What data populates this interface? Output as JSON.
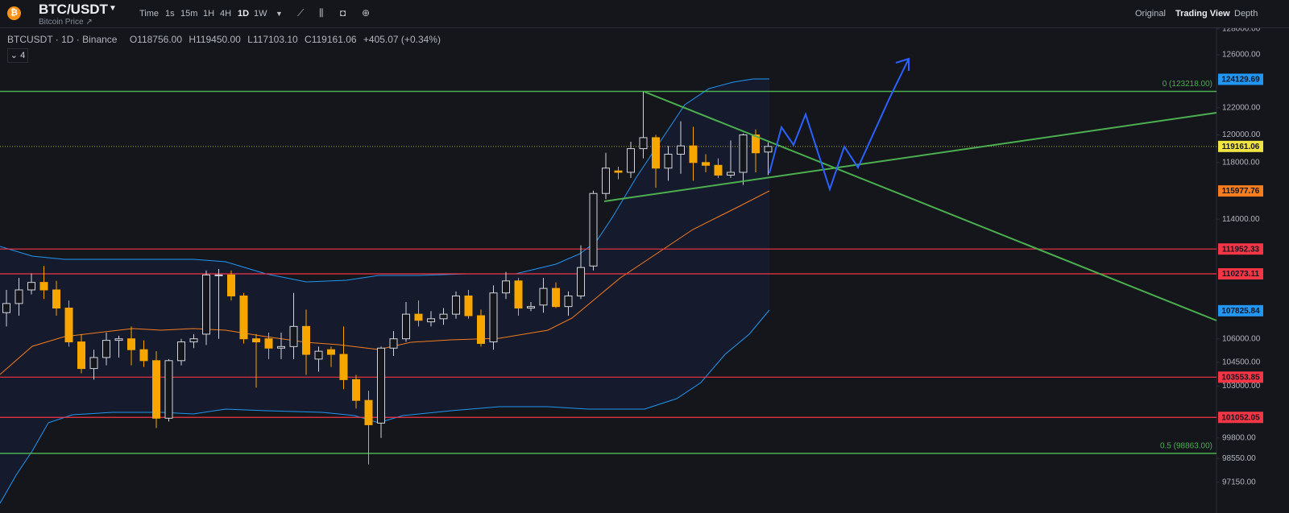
{
  "header": {
    "symbol": "BTC/USDT",
    "subtitle": "Bitcoin Price ↗",
    "timeframes": [
      "Time",
      "1s",
      "15m",
      "1H",
      "4H",
      "1D",
      "1W"
    ],
    "active_timeframe": 5,
    "views": [
      "Original",
      "Trading View",
      "Depth"
    ],
    "active_view": 1
  },
  "legend": {
    "instrument": "BTCUSDT · 1D · Binance",
    "open": "O118756.00",
    "high": "H119450.00",
    "low": "L117103.10",
    "close": "C119161.06",
    "change": "+405.07 (+0.34%)",
    "indicator_count": "4"
  },
  "chart_data": {
    "type": "candlestick",
    "log_scale": true,
    "up_color": "#d1d4dc",
    "down_color": "#f7a600",
    "open": [
      107700,
      108300,
      109200,
      109700,
      109200,
      108000,
      105800,
      104100,
      104800,
      105900,
      106000,
      105300,
      104600,
      101000,
      104600,
      105800,
      106300,
      110200,
      110200,
      108800,
      106000,
      106000,
      105400,
      105500,
      106800,
      104700,
      105300,
      105000,
      103400,
      102100,
      100700,
      105400,
      106000,
      107600,
      107100,
      107300,
      107600,
      108800,
      107500,
      105800,
      109000,
      109800,
      108000,
      108200,
      109300,
      108100,
      108800,
      110800,
      115800,
      117400,
      117300,
      119000,
      119800,
      117600,
      118600,
      119200,
      118000,
      117800,
      117100,
      117300,
      120000,
      118756
    ],
    "high": [
      109200,
      110000,
      110300,
      110800,
      109800,
      108500,
      106300,
      105300,
      106400,
      106200,
      106800,
      105900,
      105200,
      104700,
      106000,
      106300,
      110500,
      110600,
      110500,
      109000,
      106300,
      106400,
      106400,
      109000,
      107900,
      105500,
      105500,
      106800,
      103700,
      102700,
      105500,
      106500,
      108400,
      108500,
      107800,
      108000,
      109100,
      109200,
      107900,
      109500,
      110400,
      110000,
      108400,
      110000,
      109700,
      109100,
      112200,
      116000,
      118700,
      117700,
      119500,
      123200,
      120000,
      119200,
      121000,
      120600,
      118600,
      118300,
      119600,
      120100,
      120400,
      119450
    ],
    "low": [
      106800,
      107500,
      108900,
      108600,
      107500,
      105500,
      103800,
      103400,
      104300,
      104800,
      104300,
      104200,
      100400,
      100800,
      104300,
      105400,
      105600,
      106000,
      108500,
      105700,
      102900,
      104700,
      104700,
      104700,
      103700,
      103900,
      104200,
      102800,
      101600,
      98200,
      99800,
      104900,
      105800,
      106800,
      106800,
      106900,
      107300,
      107300,
      105500,
      105300,
      108600,
      107500,
      107800,
      107700,
      108000,
      107500,
      108600,
      110500,
      115400,
      116800,
      116900,
      118300,
      116200,
      116700,
      117200,
      116700,
      117300,
      116900,
      116900,
      116400,
      117300,
      117103.1
    ],
    "close": [
      108300,
      109200,
      109700,
      109200,
      108000,
      105800,
      104100,
      104800,
      105900,
      106000,
      105300,
      104600,
      101000,
      104600,
      105800,
      106000,
      110200,
      110200,
      108800,
      106000,
      105800,
      105400,
      105500,
      106800,
      105000,
      105200,
      105000,
      103400,
      102100,
      100600,
      105400,
      106000,
      107600,
      107200,
      107300,
      107600,
      108800,
      107500,
      105700,
      109000,
      109800,
      108000,
      108100,
      109300,
      108100,
      108800,
      110700,
      115800,
      117600,
      117300,
      119000,
      119800,
      117600,
      118600,
      119200,
      118000,
      117800,
      117100,
      117300,
      120000,
      118700,
      119161.06
    ],
    "ylim": [
      95340,
      128050
    ],
    "yticks": [
      {
        "value": 128000,
        "label": "128000.00"
      },
      {
        "value": 126000,
        "label": "126000.00"
      },
      {
        "value": 122000,
        "label": "122000.00"
      },
      {
        "value": 120000,
        "label": "120000.00"
      },
      {
        "value": 118000,
        "label": "118000.00"
      },
      {
        "value": 114000,
        "label": "114000.00"
      },
      {
        "value": 106000,
        "label": "106000.00"
      },
      {
        "value": 104500,
        "label": "104500.00"
      },
      {
        "value": 103000,
        "label": "103000.00"
      },
      {
        "value": 99800,
        "label": "99800.00"
      },
      {
        "value": 98550,
        "label": "98550.00"
      },
      {
        "value": 97150,
        "label": "97150.00"
      }
    ],
    "price_labels": [
      {
        "value": 124129.69,
        "color": "#2196f3"
      },
      {
        "value": 119161.06,
        "color": "#f0e442",
        "line": "dotted"
      },
      {
        "value": 115977.76,
        "color": "#f57c1f"
      },
      {
        "value": 111952.33,
        "color": "#f23645",
        "line": "solid"
      },
      {
        "value": 110273.11,
        "color": "#f23645",
        "line": "solid"
      },
      {
        "value": 107825.84,
        "color": "#2196f3"
      },
      {
        "value": 103553.85,
        "color": "#f23645",
        "line": "solid"
      },
      {
        "value": 101052.05,
        "color": "#f23645",
        "line": "solid"
      }
    ],
    "fib_levels": [
      {
        "value": 123218,
        "label": "0 (123218.00)",
        "color": "#4caf50"
      },
      {
        "value": 98863,
        "label": "0.5 (98863.00)",
        "color": "#4caf50"
      }
    ]
  }
}
